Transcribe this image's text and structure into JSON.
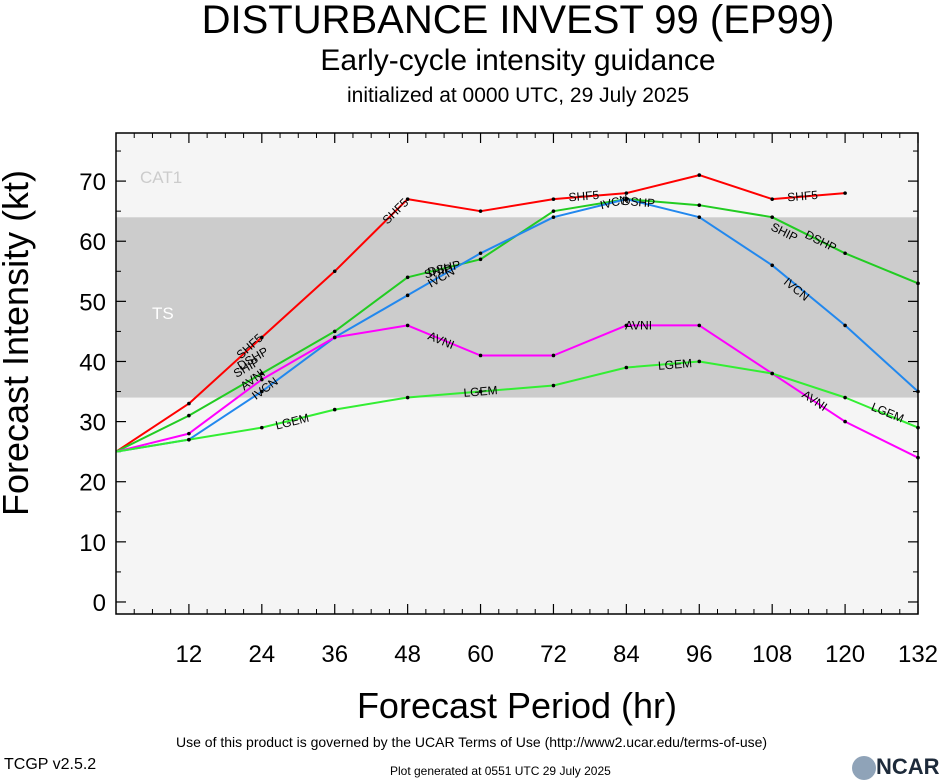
{
  "header": {
    "title": "DISTURBANCE INVEST 99 (EP99)",
    "subtitle": "Early-cycle intensity guidance",
    "initialized": "initialized at 0000 UTC, 29 July 2025"
  },
  "footer": {
    "terms": "Use of this product is governed by the UCAR Terms of Use (http://www2.ucar.edu/terms-of-use)",
    "version": "TCGP v2.5.2",
    "generated": "Plot generated at 0551 UTC   29 July 2025",
    "logo_text": "NCAR"
  },
  "chart_data": {
    "type": "line",
    "xlabel": "Forecast Period (hr)",
    "ylabel": "Forecast Intensity (kt)",
    "xlim": [
      0,
      132
    ],
    "ylim": [
      -2,
      78
    ],
    "xticks": [
      12,
      24,
      36,
      48,
      60,
      72,
      84,
      96,
      108,
      120,
      132
    ],
    "yticks": [
      0,
      10,
      20,
      30,
      40,
      50,
      60,
      70
    ],
    "bands": [
      {
        "name": "TS",
        "from": 34,
        "to": 64,
        "color": "#cccccc"
      },
      {
        "name": "CAT1",
        "from": 64,
        "to": 78,
        "color": "#f5f5f5"
      }
    ],
    "series": [
      {
        "name": "SHF5",
        "color": "#ff0000",
        "x": [
          0,
          12,
          24,
          36,
          48,
          60,
          72,
          84,
          96,
          108,
          120
        ],
        "y": [
          25,
          33,
          44,
          55,
          67,
          65,
          67,
          68,
          71,
          67,
          68
        ]
      },
      {
        "name": "DSHP",
        "color": "#22cc22",
        "x": [
          0,
          12,
          24,
          36,
          48,
          60,
          72,
          84,
          96,
          108,
          120,
          132
        ],
        "y": [
          25,
          31,
          38,
          45,
          54,
          57,
          65,
          67,
          66,
          64,
          58,
          53
        ]
      },
      {
        "name": "IVCN",
        "color": "#2288ee",
        "x": [
          0,
          12,
          24,
          36,
          48,
          60,
          72,
          84,
          96,
          108,
          120,
          132
        ],
        "y": [
          25,
          27,
          35,
          44,
          51,
          58,
          64,
          67,
          64,
          56,
          46,
          35
        ]
      },
      {
        "name": "AVNI",
        "color": "#ff00ff",
        "x": [
          0,
          12,
          24,
          36,
          48,
          60,
          72,
          84,
          96,
          108,
          120,
          132
        ],
        "y": [
          25,
          28,
          37,
          44,
          46,
          41,
          41,
          46,
          46,
          38,
          30,
          24
        ]
      },
      {
        "name": "LGEM",
        "color": "#33ee33",
        "x": [
          0,
          12,
          24,
          36,
          48,
          60,
          72,
          84,
          96,
          108,
          120,
          132
        ],
        "y": [
          25,
          27,
          29,
          32,
          34,
          35,
          36,
          39,
          40,
          38,
          34,
          29
        ]
      }
    ],
    "labels": [
      {
        "series": "SHF5",
        "text": "SHF5",
        "x": 22,
        "y": 42.5
      },
      {
        "series": "SHF5",
        "text": "SHF5",
        "x": 46,
        "y": 65
      },
      {
        "series": "SHF5",
        "text": "SHF5",
        "x": 77,
        "y": 67.5
      },
      {
        "series": "SHF5",
        "text": "SHF5",
        "x": 113,
        "y": 67.5
      },
      {
        "series": "DSHP",
        "text": "DSHP",
        "x": 22.5,
        "y": 40.5
      },
      {
        "series": "DSHP",
        "text": "DSHP",
        "x": 54,
        "y": 55.5
      },
      {
        "series": "DSHP",
        "text": "DSHP",
        "x": 86,
        "y": 66.5
      },
      {
        "series": "DSHP",
        "text": "DSHP",
        "x": 116,
        "y": 60
      },
      {
        "series": "SHIP",
        "text": "SHIP",
        "x": 21.5,
        "y": 39
      },
      {
        "series": "SHIP",
        "text": "SHIP",
        "x": 53,
        "y": 55
      },
      {
        "series": "SHIP",
        "text": "SHIP",
        "x": 110,
        "y": 61.5
      },
      {
        "series": "IVCN",
        "text": "IVCN",
        "x": 24.5,
        "y": 35.5
      },
      {
        "series": "IVCN",
        "text": "IVCN",
        "x": 53.5,
        "y": 54
      },
      {
        "series": "IVCN",
        "text": "IVCN",
        "x": 82,
        "y": 66.5
      },
      {
        "series": "IVCN",
        "text": "IVCN",
        "x": 112,
        "y": 52
      },
      {
        "series": "AVNI",
        "text": "AVNI",
        "x": 22.5,
        "y": 37
      },
      {
        "series": "AVNI",
        "text": "AVNI",
        "x": 53.5,
        "y": 43.5
      },
      {
        "series": "AVNI",
        "text": "AVNI",
        "x": 86,
        "y": 46
      },
      {
        "series": "AVNI",
        "text": "AVNI",
        "x": 115,
        "y": 33.5
      },
      {
        "series": "LGEM",
        "text": "LGEM",
        "x": 29,
        "y": 30
      },
      {
        "series": "LGEM",
        "text": "LGEM",
        "x": 60,
        "y": 35
      },
      {
        "series": "LGEM",
        "text": "LGEM",
        "x": 92,
        "y": 39.5
      },
      {
        "series": "LGEM",
        "text": "LGEM",
        "x": 127,
        "y": 31.5
      }
    ]
  }
}
